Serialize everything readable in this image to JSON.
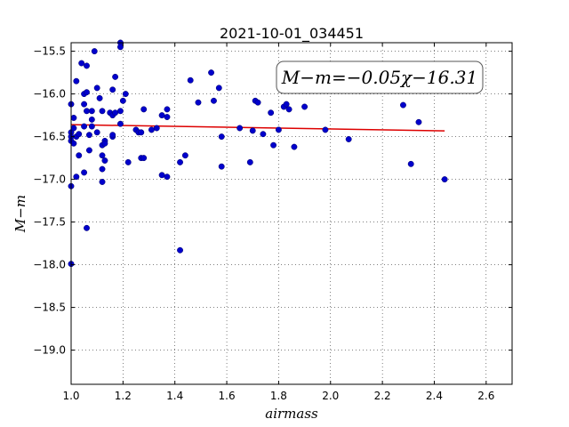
{
  "chart_data": {
    "type": "scatter",
    "title": "2021-10-01_034451",
    "xlabel": "airmass",
    "ylabel": "M−m",
    "xlim": [
      1.0,
      2.7
    ],
    "ylim": [
      -19.4,
      -15.4
    ],
    "y_inverted": true,
    "grid": true,
    "x_ticks": [
      "1.0",
      "1.2",
      "1.4",
      "1.6",
      "1.8",
      "2.0",
      "2.2",
      "2.4",
      "2.6"
    ],
    "y_ticks": [
      "−15.5",
      "−16.0",
      "−16.5",
      "−17.0",
      "−17.5",
      "−18.0",
      "−18.5",
      "−19.0"
    ],
    "annotation": "M−m=−0.05χ−16.31",
    "point_color": "#0000cc",
    "fit_color": "#dd0000",
    "fit": {
      "slope": -0.05,
      "intercept": -16.31,
      "x_range": [
        1.0,
        2.44
      ]
    },
    "points": [
      [
        1.0,
        -16.12
      ],
      [
        1.0,
        -16.45
      ],
      [
        1.0,
        -16.5
      ],
      [
        1.0,
        -16.55
      ],
      [
        1.0,
        -17.08
      ],
      [
        1.0,
        -17.99
      ],
      [
        1.01,
        -16.28
      ],
      [
        1.01,
        -16.58
      ],
      [
        1.01,
        -16.4
      ],
      [
        1.02,
        -15.85
      ],
      [
        1.02,
        -16.5
      ],
      [
        1.02,
        -16.97
      ],
      [
        1.03,
        -16.47
      ],
      [
        1.03,
        -16.72
      ],
      [
        1.04,
        -15.64
      ],
      [
        1.05,
        -16.0
      ],
      [
        1.05,
        -16.12
      ],
      [
        1.05,
        -16.92
      ],
      [
        1.05,
        -16.38
      ],
      [
        1.06,
        -15.98
      ],
      [
        1.06,
        -16.2
      ],
      [
        1.06,
        -15.67
      ],
      [
        1.06,
        -17.57
      ],
      [
        1.07,
        -16.66
      ],
      [
        1.07,
        -16.48
      ],
      [
        1.08,
        -16.3
      ],
      [
        1.08,
        -16.38
      ],
      [
        1.08,
        -16.2
      ],
      [
        1.09,
        -15.5
      ],
      [
        1.1,
        -15.93
      ],
      [
        1.1,
        -16.45
      ],
      [
        1.11,
        -16.05
      ],
      [
        1.12,
        -16.6
      ],
      [
        1.12,
        -16.88
      ],
      [
        1.12,
        -17.03
      ],
      [
        1.12,
        -16.72
      ],
      [
        1.12,
        -16.2
      ],
      [
        1.13,
        -16.55
      ],
      [
        1.13,
        -16.78
      ],
      [
        1.13,
        -16.58
      ],
      [
        1.15,
        -16.22
      ],
      [
        1.16,
        -15.95
      ],
      [
        1.16,
        -16.25
      ],
      [
        1.16,
        -16.5
      ],
      [
        1.16,
        -16.48
      ],
      [
        1.17,
        -15.8
      ],
      [
        1.17,
        -16.22
      ],
      [
        1.19,
        -15.4
      ],
      [
        1.19,
        -15.45
      ],
      [
        1.19,
        -16.2
      ],
      [
        1.19,
        -16.35
      ],
      [
        1.2,
        -16.08
      ],
      [
        1.21,
        -16.0
      ],
      [
        1.22,
        -16.8
      ],
      [
        1.25,
        -16.42
      ],
      [
        1.26,
        -16.45
      ],
      [
        1.27,
        -16.45
      ],
      [
        1.27,
        -16.75
      ],
      [
        1.28,
        -16.18
      ],
      [
        1.28,
        -16.75
      ],
      [
        1.31,
        -16.42
      ],
      [
        1.33,
        -16.4
      ],
      [
        1.35,
        -16.25
      ],
      [
        1.35,
        -16.95
      ],
      [
        1.37,
        -16.18
      ],
      [
        1.37,
        -16.27
      ],
      [
        1.37,
        -16.97
      ],
      [
        1.42,
        -16.8
      ],
      [
        1.42,
        -17.83
      ],
      [
        1.44,
        -16.72
      ],
      [
        1.46,
        -15.84
      ],
      [
        1.49,
        -16.1
      ],
      [
        1.54,
        -15.75
      ],
      [
        1.55,
        -16.08
      ],
      [
        1.57,
        -15.93
      ],
      [
        1.58,
        -16.5
      ],
      [
        1.58,
        -16.85
      ],
      [
        1.65,
        -16.4
      ],
      [
        1.69,
        -16.8
      ],
      [
        1.7,
        -16.43
      ],
      [
        1.71,
        -16.08
      ],
      [
        1.72,
        -16.1
      ],
      [
        1.74,
        -16.47
      ],
      [
        1.77,
        -16.22
      ],
      [
        1.78,
        -16.6
      ],
      [
        1.8,
        -16.42
      ],
      [
        1.82,
        -16.15
      ],
      [
        1.83,
        -16.12
      ],
      [
        1.84,
        -16.18
      ],
      [
        1.86,
        -16.62
      ],
      [
        1.9,
        -16.15
      ],
      [
        1.98,
        -16.42
      ],
      [
        2.07,
        -16.53
      ],
      [
        2.28,
        -16.13
      ],
      [
        2.31,
        -16.82
      ],
      [
        2.34,
        -16.33
      ],
      [
        2.44,
        -17.0
      ]
    ]
  }
}
